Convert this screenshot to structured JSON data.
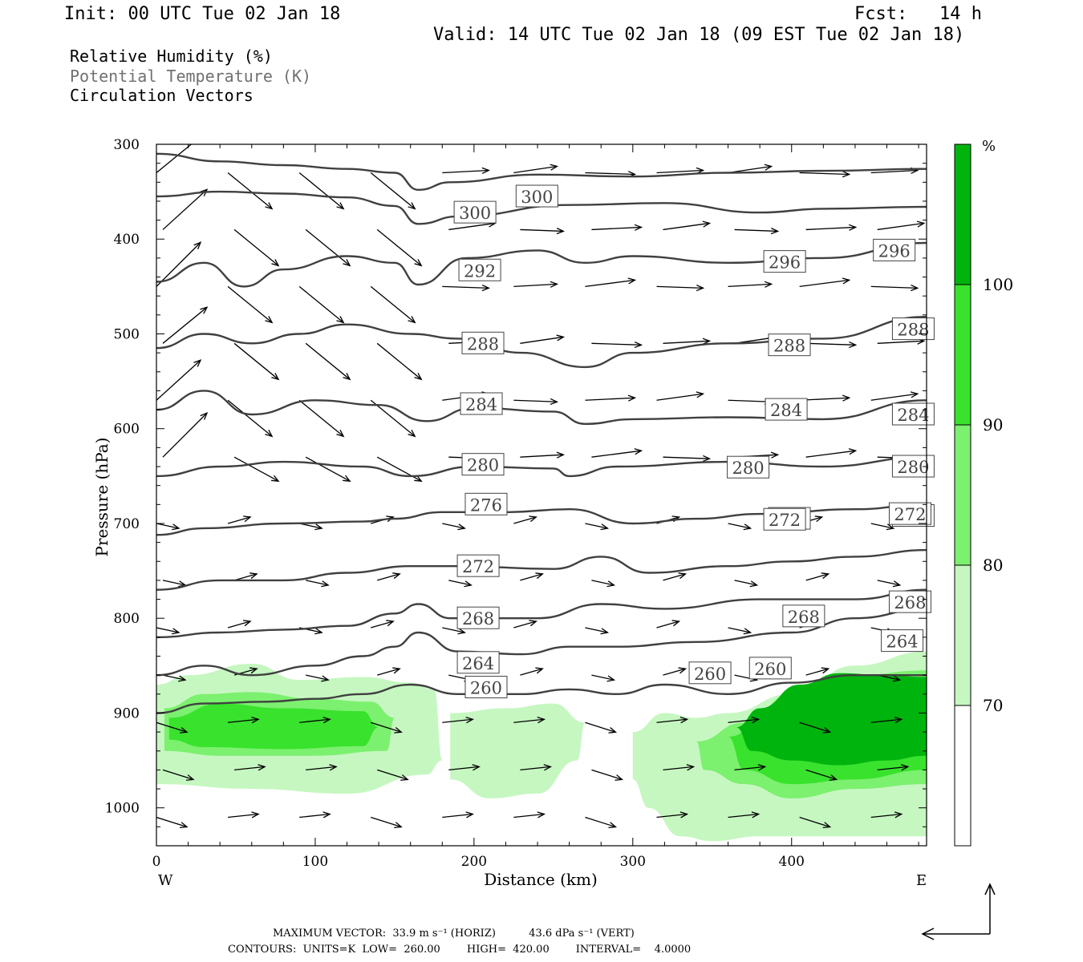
{
  "header": {
    "init": "Init: 00 UTC Tue 02 Jan 18",
    "fcst": "Fcst:   14 h",
    "valid": "Valid: 14 UTC Tue 02 Jan 18 (09 EST Tue 02 Jan 18)",
    "fields": [
      "Relative Humidity (%)",
      "Potential Temperature (K)",
      "Circulation Vectors"
    ]
  },
  "colors": {
    "rh70": "#c6f7c1",
    "rh80": "#7cf06f",
    "rh90": "#39e22d",
    "rh100": "#00b40e",
    "contour": "#404040"
  },
  "chart_data": {
    "type": "cross-section",
    "xlabel": "Distance (km)",
    "ylabel": "Pressure (hPa)",
    "xlim": [
      0,
      485
    ],
    "ylim": [
      1040,
      300
    ],
    "x_ticks": [
      0,
      100,
      200,
      300,
      400
    ],
    "y_ticks": [
      300,
      400,
      500,
      600,
      700,
      800,
      900,
      1000
    ],
    "x_end_labels": {
      "left": "W",
      "right": "E"
    },
    "colorbar": {
      "unit": "%",
      "levels": [
        70,
        80,
        90,
        100
      ],
      "colors": [
        "#ffffff",
        "#c6f7c1",
        "#7cf06f",
        "#39e22d",
        "#00b40e"
      ]
    },
    "theta_contours": [
      {
        "value": 300,
        "points": [
          [
            0,
            310
          ],
          [
            40,
            318
          ],
          [
            80,
            322
          ],
          [
            120,
            326
          ],
          [
            150,
            330
          ],
          [
            165,
            348
          ],
          [
            185,
            340
          ],
          [
            240,
            332
          ],
          [
            300,
            334
          ],
          [
            360,
            330
          ],
          [
            420,
            328
          ],
          [
            485,
            326
          ]
        ],
        "labels": [
          [
            188,
            372
          ],
          [
            227,
            355
          ]
        ]
      },
      {
        "value": 296,
        "points": [
          [
            0,
            355
          ],
          [
            40,
            350
          ],
          [
            80,
            352
          ],
          [
            120,
            356
          ],
          [
            150,
            365
          ],
          [
            165,
            384
          ],
          [
            190,
            376
          ],
          [
            260,
            364
          ],
          [
            320,
            362
          ],
          [
            380,
            372
          ],
          [
            420,
            368
          ],
          [
            485,
            366
          ]
        ],
        "labels": [
          [
            383,
            424
          ],
          [
            452,
            412
          ]
        ]
      },
      {
        "value": 292,
        "points": [
          [
            0,
            445
          ],
          [
            30,
            425
          ],
          [
            55,
            450
          ],
          [
            80,
            432
          ],
          [
            120,
            418
          ],
          [
            150,
            425
          ],
          [
            165,
            448
          ],
          [
            195,
            420
          ],
          [
            240,
            412
          ],
          [
            270,
            425
          ],
          [
            300,
            418
          ],
          [
            360,
            425
          ],
          [
            420,
            420
          ],
          [
            485,
            404
          ]
        ],
        "labels": [
          [
            191,
            433
          ]
        ]
      },
      {
        "value": 288,
        "points": [
          [
            0,
            515
          ],
          [
            30,
            500
          ],
          [
            60,
            510
          ],
          [
            90,
            500
          ],
          [
            120,
            490
          ],
          [
            160,
            500
          ],
          [
            190,
            505
          ],
          [
            230,
            520
          ],
          [
            270,
            535
          ],
          [
            300,
            520
          ],
          [
            360,
            510
          ],
          [
            420,
            505
          ],
          [
            485,
            482
          ]
        ],
        "labels": [
          [
            193,
            510
          ],
          [
            386,
            512
          ],
          [
            464,
            495
          ]
        ]
      },
      {
        "value": 284,
        "points": [
          [
            0,
            580
          ],
          [
            30,
            560
          ],
          [
            60,
            585
          ],
          [
            100,
            570
          ],
          [
            140,
            575
          ],
          [
            170,
            592
          ],
          [
            200,
            578
          ],
          [
            250,
            582
          ],
          [
            270,
            595
          ],
          [
            300,
            590
          ],
          [
            360,
            588
          ],
          [
            420,
            590
          ],
          [
            485,
            570
          ]
        ],
        "labels": [
          [
            192,
            574
          ],
          [
            384,
            580
          ],
          [
            464,
            585
          ]
        ]
      },
      {
        "value": 280,
        "points": [
          [
            0,
            650
          ],
          [
            40,
            640
          ],
          [
            80,
            635
          ],
          [
            130,
            640
          ],
          [
            160,
            650
          ],
          [
            200,
            640
          ],
          [
            250,
            642
          ],
          [
            260,
            650
          ],
          [
            290,
            640
          ],
          [
            360,
            635
          ],
          [
            420,
            640
          ],
          [
            485,
            630
          ]
        ],
        "labels": [
          [
            193,
            638
          ],
          [
            360,
            641
          ],
          [
            464,
            640
          ]
        ]
      },
      {
        "value": 276,
        "points": [
          [
            0,
            712
          ],
          [
            30,
            705
          ],
          [
            80,
            700
          ],
          [
            130,
            698
          ],
          [
            150,
            695
          ],
          [
            180,
            688
          ],
          [
            220,
            688
          ],
          [
            260,
            685
          ],
          [
            300,
            700
          ],
          [
            340,
            695
          ],
          [
            380,
            690
          ],
          [
            440,
            685
          ],
          [
            485,
            680
          ]
        ],
        "labels": [
          [
            195,
            680
          ],
          [
            386,
            695
          ],
          [
            464,
            692
          ]
        ]
      },
      {
        "value": 272,
        "points": [
          [
            0,
            770
          ],
          [
            40,
            760
          ],
          [
            80,
            760
          ],
          [
            120,
            752
          ],
          [
            160,
            745
          ],
          [
            190,
            745
          ],
          [
            250,
            748
          ],
          [
            280,
            735
          ],
          [
            310,
            752
          ],
          [
            360,
            745
          ],
          [
            400,
            740
          ],
          [
            440,
            735
          ],
          [
            485,
            728
          ]
        ],
        "labels": [
          [
            190,
            745
          ],
          [
            383,
            696
          ],
          [
            462,
            690
          ]
        ]
      },
      {
        "value": 268,
        "points": [
          [
            0,
            820
          ],
          [
            40,
            815
          ],
          [
            80,
            812
          ],
          [
            120,
            808
          ],
          [
            150,
            795
          ],
          [
            165,
            785
          ],
          [
            185,
            800
          ],
          [
            240,
            800
          ],
          [
            280,
            785
          ],
          [
            320,
            790
          ],
          [
            380,
            780
          ],
          [
            440,
            780
          ],
          [
            485,
            770
          ]
        ],
        "labels": [
          [
            190,
            800
          ],
          [
            395,
            798
          ],
          [
            462,
            783
          ]
        ]
      },
      {
        "value": 264,
        "points": [
          [
            0,
            860
          ],
          [
            30,
            850
          ],
          [
            60,
            860
          ],
          [
            100,
            850
          ],
          [
            130,
            840
          ],
          [
            150,
            830
          ],
          [
            165,
            815
          ],
          [
            190,
            835
          ],
          [
            230,
            838
          ],
          [
            260,
            830
          ],
          [
            290,
            830
          ],
          [
            340,
            825
          ],
          [
            400,
            815
          ],
          [
            440,
            800
          ],
          [
            485,
            790
          ]
        ],
        "labels": [
          [
            190,
            847
          ],
          [
            457,
            824
          ]
        ]
      },
      {
        "value": 260,
        "points": [
          [
            0,
            900
          ],
          [
            30,
            890
          ],
          [
            70,
            888
          ],
          [
            100,
            885
          ],
          [
            130,
            880
          ],
          [
            160,
            870
          ],
          [
            190,
            880
          ],
          [
            230,
            880
          ],
          [
            260,
            875
          ],
          [
            290,
            880
          ],
          [
            320,
            870
          ],
          [
            360,
            880
          ],
          [
            400,
            868
          ],
          [
            440,
            860
          ],
          [
            485,
            860
          ]
        ],
        "labels": [
          [
            195,
            873
          ],
          [
            336,
            858
          ],
          [
            374,
            853
          ]
        ]
      }
    ],
    "annotations": {
      "max_vector": "MAXIMUM VECTOR:  33.9 m s⁻¹ (HORIZ)          43.6 dPa s⁻¹ (VERT)",
      "contours": "CONTOURS:  UNITS=K  LOW=  260.00        HIGH=  420.00        INTERVAL=    4.0000"
    }
  }
}
